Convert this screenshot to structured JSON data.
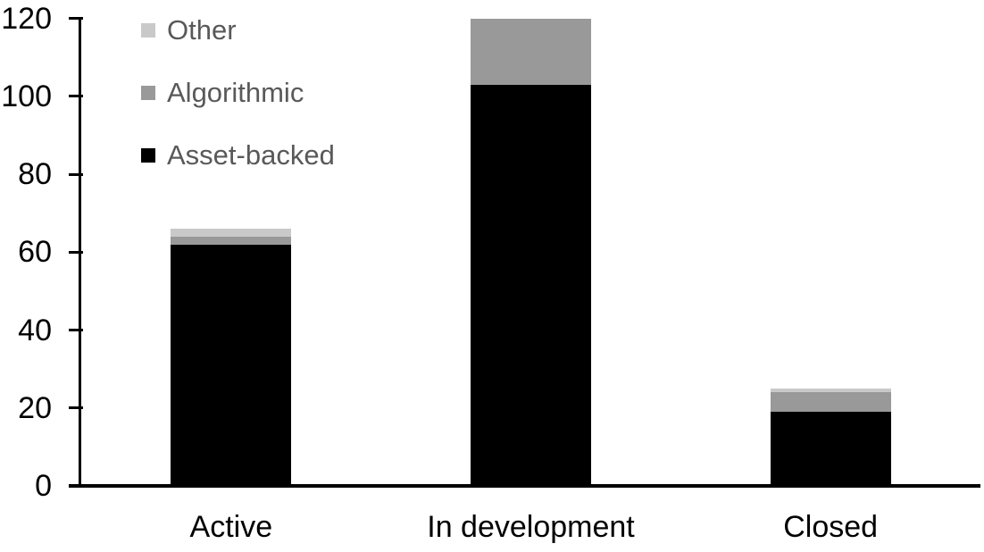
{
  "chart_data": {
    "type": "bar",
    "stacked": true,
    "title": "",
    "categories": [
      "Active",
      "In development",
      "Closed"
    ],
    "series": [
      {
        "name": "Asset-backed",
        "color": "#000000",
        "values": [
          62,
          103,
          19
        ]
      },
      {
        "name": "Algorithmic",
        "color": "#999999",
        "values": [
          2,
          17,
          5
        ]
      },
      {
        "name": "Other",
        "color": "#c9c9c9",
        "values": [
          2,
          0,
          1
        ]
      }
    ],
    "totals": [
      66,
      120,
      25
    ],
    "xlabel": "",
    "ylabel": "",
    "y_axis": {
      "min": 0,
      "max": 120,
      "tick_interval": 20,
      "ticks": [
        0,
        20,
        40,
        60,
        80,
        100,
        120
      ]
    },
    "grid": "off",
    "legend": {
      "position": "top-left",
      "entries_top_to_bottom": [
        "Other",
        "Algorithmic",
        "Asset-backed"
      ]
    },
    "colors": {
      "background": "#ffffff",
      "axis": "#000000",
      "axis_text": "#000000",
      "legend_text": "#595959"
    }
  }
}
